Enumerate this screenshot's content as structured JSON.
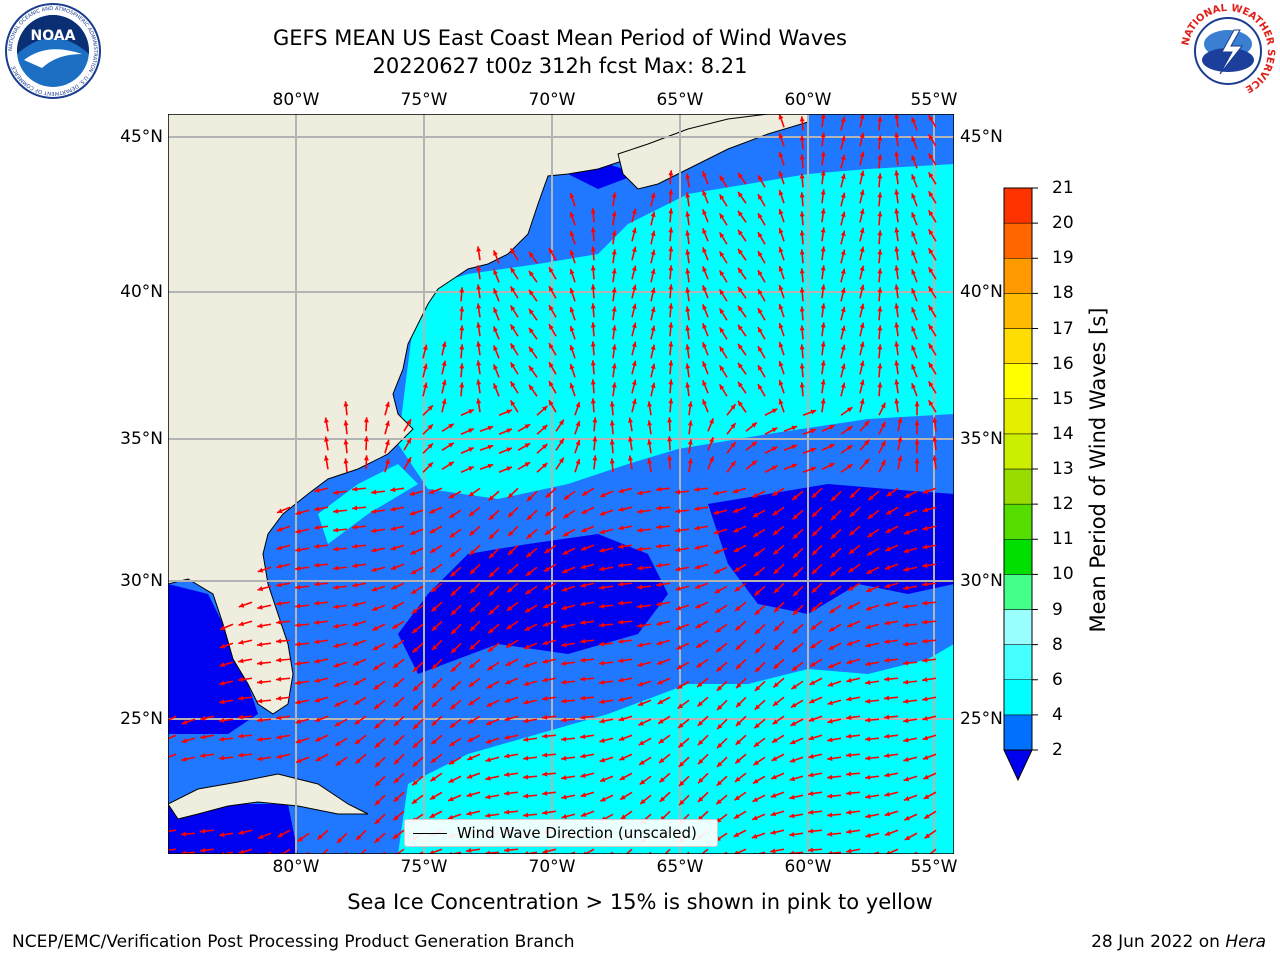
{
  "title": {
    "line1": "GEFS MEAN US East Coast Mean Period of Wind Waves",
    "line2": "20220627 t00z 312h fcst   Max: 8.21"
  },
  "logos": {
    "left": "NOAA",
    "left_ring": "NATIONAL OCEANIC AND ATMOSPHERIC ADMINISTRATION · U.S. DEPARTMENT OF COMMERCE",
    "right_ring": "NATIONAL WEATHER SERVICE"
  },
  "map": {
    "extent": {
      "lon_min": -85,
      "lon_max": -54.3,
      "lat_min": 20.5,
      "lat_max": 46
    },
    "lon_labels": [
      "80°W",
      "75°W",
      "70°W",
      "65°W",
      "60°W",
      "55°W"
    ],
    "lat_labels": [
      "45°N",
      "40°N",
      "35°N",
      "30°N",
      "25°N"
    ],
    "colors": {
      "land": "#efedde",
      "range_2_4": "#1f78ff",
      "range_4_6": "#00ffff",
      "range_below_2": "#0000f0",
      "arrow": "#ff0000",
      "grid": "#b4b4b4"
    }
  },
  "colorbar": {
    "label": "Mean Period of Wind Waves [s]",
    "ticks": [
      "2",
      "4",
      "6",
      "8",
      "9",
      "10",
      "11",
      "12",
      "13",
      "14",
      "15",
      "16",
      "17",
      "18",
      "19",
      "20",
      "21"
    ],
    "colors": [
      "#0070ff",
      "#00ffff",
      "#44ffff",
      "#99ffff",
      "#44ff88",
      "#00e000",
      "#55dd00",
      "#99dd00",
      "#ccee00",
      "#e6ee00",
      "#ffff00",
      "#ffdd00",
      "#ffbb00",
      "#ff9900",
      "#ff6600",
      "#ff3300",
      "#ff0000"
    ],
    "extend_color": "#0000ee"
  },
  "legend": {
    "label": "Wind Wave Direction (unscaled)"
  },
  "caption": "Sea Ice Concentration > 15% is shown in pink to yellow",
  "footer": {
    "left": "NCEP/EMC/Verification Post Processing Product Generation Branch",
    "right_date": "28 Jun 2022 on ",
    "right_host": "Hera"
  }
}
